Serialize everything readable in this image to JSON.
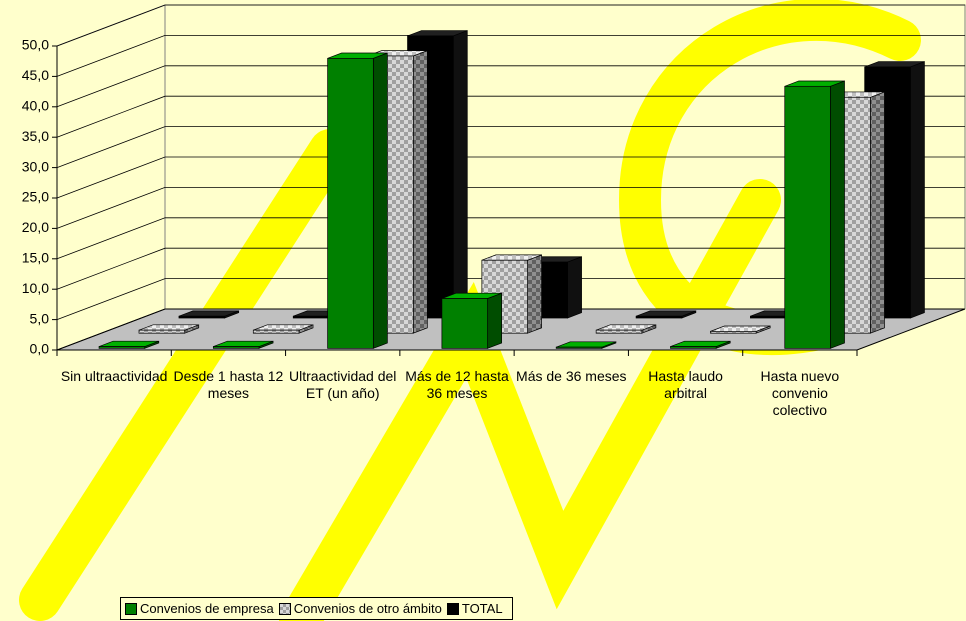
{
  "chart_data": {
    "type": "bar3d",
    "categories": [
      "Sin ultraactividad",
      "Desde 1 hasta 12 meses",
      "Ultraactividad del ET (un año)",
      "Más de 12 hasta  36 meses",
      "Más de 36 meses",
      "Hasta laudo arbitral",
      "Hasta nuevo convenio colectivo"
    ],
    "series": [
      {
        "name": "Convenios de empresa",
        "color": "#008000",
        "values": [
          0.3,
          0.3,
          47.7,
          8.2,
          0.2,
          0.3,
          43.1
        ]
      },
      {
        "name": "Convenios de otro ámbito",
        "color": "#b0b0b0",
        "values": [
          0.5,
          0.5,
          45.6,
          12.0,
          0.5,
          0.3,
          38.8
        ]
      },
      {
        "name": "TOTAL",
        "color": "#000000",
        "values": [
          0.3,
          0.3,
          46.4,
          9.2,
          0.3,
          0.3,
          41.3
        ]
      }
    ],
    "ylim": [
      0,
      50
    ],
    "yticks": [
      {
        "value": 0,
        "label": "0,0"
      },
      {
        "value": 5,
        "label": "5,0"
      },
      {
        "value": 10,
        "label": "10,0"
      },
      {
        "value": 15,
        "label": "15,0"
      },
      {
        "value": 20,
        "label": "20,0"
      },
      {
        "value": 25,
        "label": "25,0"
      },
      {
        "value": 30,
        "label": "30,0"
      },
      {
        "value": 35,
        "label": "35,0"
      },
      {
        "value": 40,
        "label": "40,0"
      },
      {
        "value": 45,
        "label": "45,0"
      },
      {
        "value": 50,
        "label": "50,0"
      }
    ],
    "grid": true,
    "legend": "bottom"
  }
}
